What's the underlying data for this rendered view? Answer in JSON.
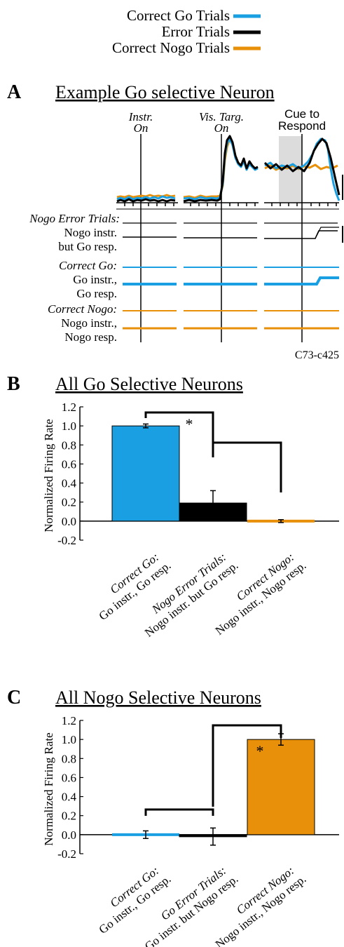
{
  "legend": {
    "items": [
      {
        "label": "Correct Go Trials",
        "color": "#1aa0e2"
      },
      {
        "label": "Error Trials",
        "color": "#000000"
      },
      {
        "label": "Correct Nogo Trials",
        "color": "#e8900a"
      }
    ]
  },
  "panel_a": {
    "letter": "A",
    "title": "Example Go selective Neuron",
    "events": {
      "instr_1": "Instr.",
      "instr_2": "On",
      "vis_1": "Vis. Targ.",
      "vis_2": "On",
      "cue_1": "Cue to",
      "cue_2": "Respond"
    },
    "rows": [
      {
        "line1": "Nogo Error Trials:",
        "line2": "Nogo instr.",
        "line3": "but Go resp."
      },
      {
        "line1": "Correct Go:",
        "line2": "Go instr.,",
        "line3": "Go resp."
      },
      {
        "line1": "Correct Nogo:",
        "line2": "Nogo instr.,",
        "line3": "Nogo resp."
      }
    ],
    "neuron_id": "C73-c425"
  },
  "chart_data": [
    {
      "panel": "B",
      "type": "bar",
      "title": "All Go Selective Neurons",
      "ylabel": "Normalized Firing Rate",
      "ylim": [
        -0.2,
        1.2
      ],
      "yticks": [
        "1.2",
        "1.0",
        "0.8",
        "0.6",
        "0.4",
        "0.2",
        "0.0",
        "-0.2"
      ],
      "categories": [
        {
          "line1": "Correct Go:",
          "line2": "Go instr., Go resp."
        },
        {
          "line1": "Nogo Error Trials:",
          "line2": "Nogo instr. but Go resp."
        },
        {
          "line1": "Correct Nogo:",
          "line2": "Nogo instr., Nogo resp."
        }
      ],
      "values": [
        1.0,
        0.19,
        0.0
      ],
      "errors": [
        0.02,
        0.13,
        0.015
      ],
      "colors": [
        "#1aa0e2",
        "#000000",
        "#e8900a"
      ],
      "significance": "*"
    },
    {
      "panel": "C",
      "type": "bar",
      "title": "All Nogo Selective Neurons",
      "ylabel": "Normalized Firing Rate",
      "ylim": [
        -0.2,
        1.2
      ],
      "yticks": [
        "1.2",
        "1.0",
        "0.8",
        "0.6",
        "0.4",
        "0.2",
        "0.0",
        "-0.2"
      ],
      "categories": [
        {
          "line1": "Correct Go:",
          "line2": "Go instr., Go resp."
        },
        {
          "line1": "Go Error Trials:",
          "line2": "Go instr. but Nogo resp."
        },
        {
          "line1": "Correct Nogo:",
          "line2": "Nogo instr., Nogo resp."
        }
      ],
      "values": [
        0.0,
        -0.02,
        1.0
      ],
      "errors": [
        0.04,
        0.09,
        0.06
      ],
      "colors": [
        "#1aa0e2",
        "#000000",
        "#e8900a"
      ],
      "significance": "*"
    }
  ]
}
